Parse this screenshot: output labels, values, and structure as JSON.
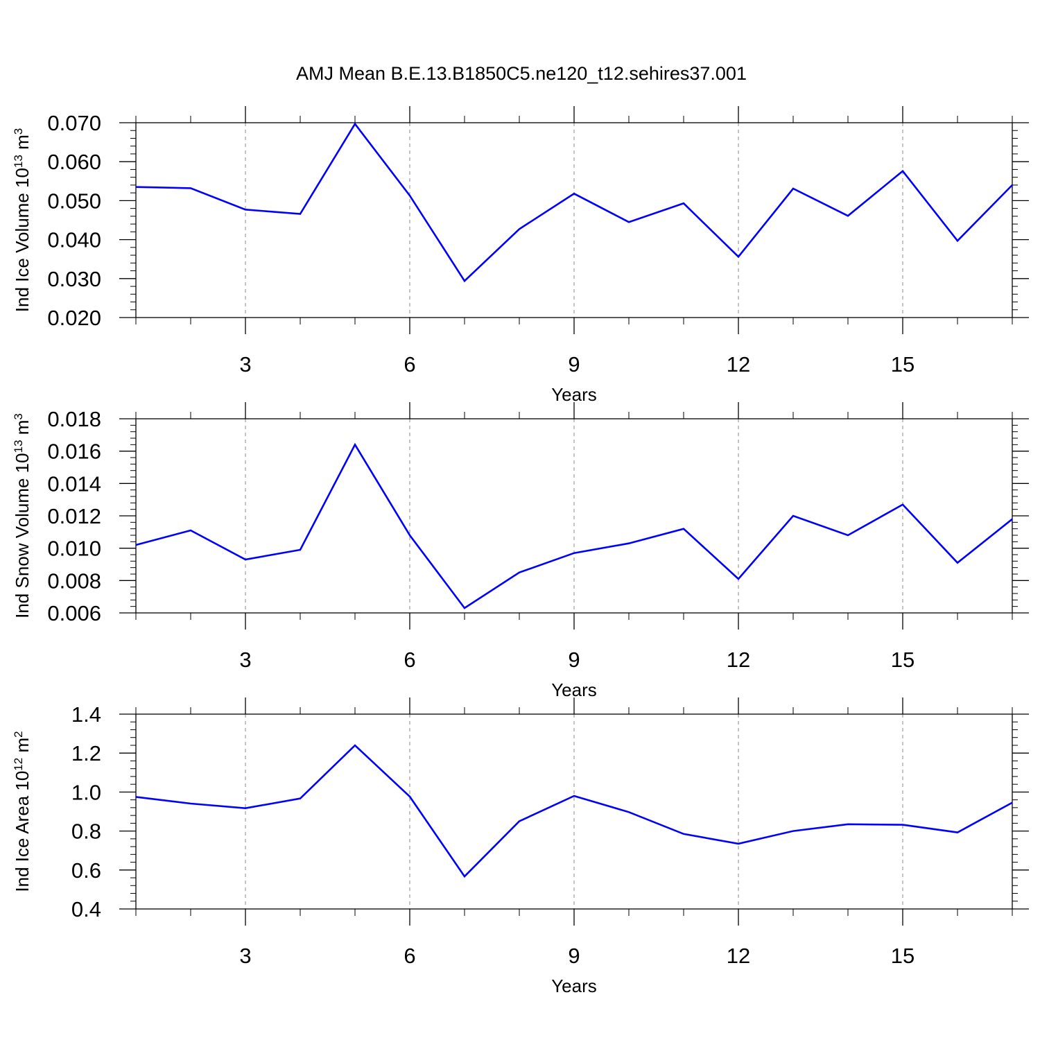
{
  "title": "AMJ Mean B.E.13.B1850C5.ne120_t12.sehires37.001",
  "line_color": "#0000ff",
  "chart_data": [
    {
      "type": "line",
      "ylabel_main": "Ind Ice Volume 10",
      "ylabel_exp": "13",
      "ylabel_unit": " m",
      "ylabel_unit_exp": "3",
      "xlabel": "Years",
      "xlim": [
        1,
        17
      ],
      "ylim": [
        0.02,
        0.07
      ],
      "x_ticks": [
        3,
        6,
        9,
        12,
        15
      ],
      "y_ticks": [
        "0.020",
        "0.030",
        "0.040",
        "0.050",
        "0.060",
        "0.070"
      ],
      "x": [
        1,
        2,
        3,
        4,
        5,
        6,
        7,
        8,
        9,
        10,
        11,
        12,
        13,
        14,
        15,
        16,
        17
      ],
      "series": [
        {
          "name": "Ind Ice Volume",
          "values": [
            0.0535,
            0.0532,
            0.0477,
            0.0466,
            0.0697,
            0.0513,
            0.0294,
            0.0427,
            0.0518,
            0.0445,
            0.0493,
            0.0356,
            0.0531,
            0.0461,
            0.0576,
            0.0397,
            0.054
          ]
        }
      ]
    },
    {
      "type": "line",
      "ylabel_main": "Ind Snow Volume 10",
      "ylabel_exp": "13",
      "ylabel_unit": " m",
      "ylabel_unit_exp": "3",
      "xlabel": "Years",
      "xlim": [
        1,
        17
      ],
      "ylim": [
        0.006,
        0.018
      ],
      "x_ticks": [
        3,
        6,
        9,
        12,
        15
      ],
      "y_ticks": [
        "0.006",
        "0.008",
        "0.010",
        "0.012",
        "0.014",
        "0.016",
        "0.018"
      ],
      "x": [
        1,
        2,
        3,
        4,
        5,
        6,
        7,
        8,
        9,
        10,
        11,
        12,
        13,
        14,
        15,
        16,
        17
      ],
      "series": [
        {
          "name": "Ind Snow Volume",
          "values": [
            0.0102,
            0.0111,
            0.0093,
            0.0099,
            0.0164,
            0.0108,
            0.0063,
            0.0085,
            0.0097,
            0.0103,
            0.0112,
            0.0081,
            0.012,
            0.0108,
            0.0127,
            0.0091,
            0.0118
          ]
        }
      ]
    },
    {
      "type": "line",
      "ylabel_main": "Ind Ice Area 10",
      "ylabel_exp": "12",
      "ylabel_unit": " m",
      "ylabel_unit_exp": "2",
      "xlabel": "Years",
      "xlim": [
        1,
        17
      ],
      "ylim": [
        0.4,
        1.4
      ],
      "x_ticks": [
        3,
        6,
        9,
        12,
        15
      ],
      "y_ticks": [
        "0.4",
        "0.6",
        "0.8",
        "1.0",
        "1.2",
        "1.4"
      ],
      "x": [
        1,
        2,
        3,
        4,
        5,
        6,
        7,
        8,
        9,
        10,
        11,
        12,
        13,
        14,
        15,
        16,
        17
      ],
      "series": [
        {
          "name": "Ind Ice Area",
          "values": [
            0.975,
            0.941,
            0.917,
            0.967,
            1.24,
            0.977,
            0.567,
            0.85,
            0.98,
            0.897,
            0.785,
            0.735,
            0.8,
            0.835,
            0.832,
            0.793,
            0.946
          ]
        }
      ]
    }
  ]
}
